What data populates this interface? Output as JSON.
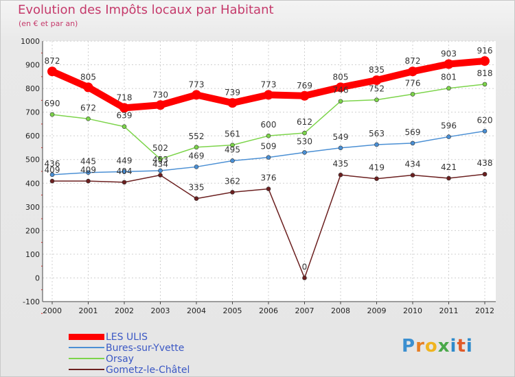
{
  "chart_data": {
    "type": "line",
    "title": "Evolution des Impôts locaux par Habitant",
    "subtitle": "(en € et par an)",
    "x": [
      "2000",
      "2001",
      "2002",
      "2003",
      "2004",
      "2005",
      "2006",
      "2007",
      "2008",
      "2009",
      "2010",
      "2011",
      "2012"
    ],
    "ylim": [
      -100,
      1000
    ],
    "yticks": [
      "-100",
      "0",
      "100",
      "200",
      "300",
      "400",
      "500",
      "600",
      "700",
      "800",
      "900",
      "1000"
    ],
    "grid": true,
    "series": [
      {
        "name": "LES ULIS",
        "color": "#ff0000",
        "values": [
          872,
          805,
          718,
          730,
          773,
          739,
          773,
          769,
          805,
          835,
          872,
          903,
          916
        ],
        "labels": [
          "872",
          "805",
          "718",
          "730",
          "773",
          "739",
          "773",
          "769",
          "805",
          "835",
          "872",
          "903",
          "916"
        ]
      },
      {
        "name": "Bures-sur-Yvette",
        "color": "#4a8fd4",
        "values": [
          436,
          445,
          449,
          453,
          469,
          495,
          509,
          530,
          549,
          563,
          569,
          596,
          620
        ],
        "labels": [
          "436",
          "445",
          "449",
          "453",
          "469",
          "495",
          "509",
          "530",
          "549",
          "563",
          "569",
          "596",
          "620"
        ]
      },
      {
        "name": "Orsay",
        "color": "#7cd44a",
        "values": [
          690,
          672,
          639,
          502,
          552,
          561,
          600,
          612,
          746,
          752,
          776,
          801,
          818
        ],
        "labels": [
          "690",
          "672",
          "639",
          "502",
          "552",
          "561",
          "600",
          "612",
          "746",
          "752",
          "776",
          "801",
          "818"
        ]
      },
      {
        "name": "Gometz-le-Châtel",
        "color": "#6b1f1f",
        "values": [
          409,
          409,
          404,
          434,
          335,
          362,
          376,
          0,
          435,
          419,
          434,
          421,
          438
        ],
        "labels": [
          "409",
          "409",
          "404",
          "434",
          "335",
          "362",
          "376",
          "0",
          "435",
          "419",
          "434",
          "421",
          "438"
        ]
      }
    ],
    "legend_position": "bottom-left"
  },
  "logo": {
    "text": "Proxiti"
  }
}
